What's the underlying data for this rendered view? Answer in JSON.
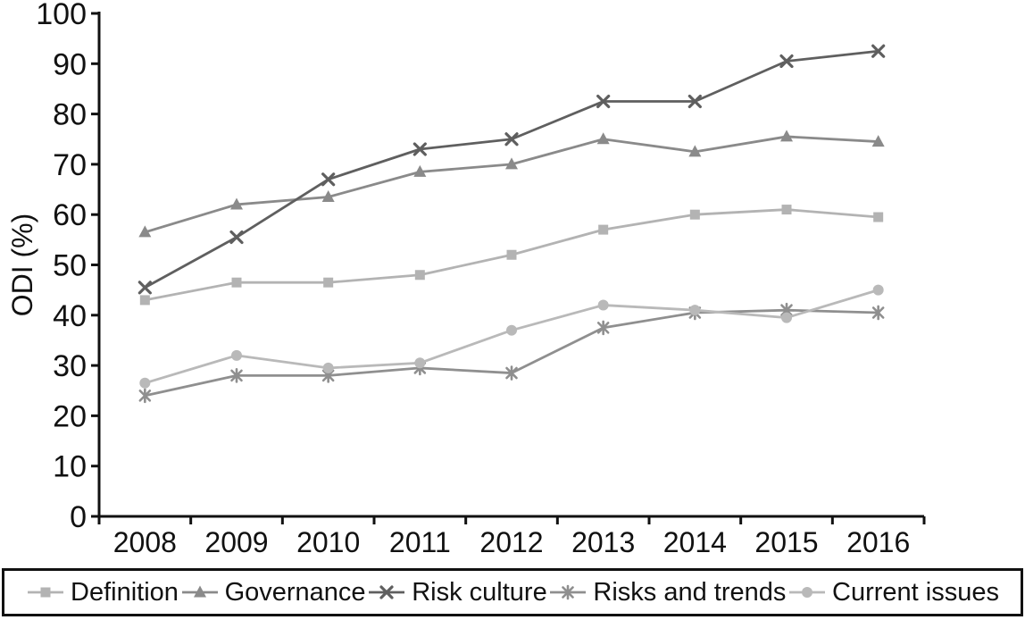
{
  "figure": {
    "background": "#ffffff",
    "axis_color": "#111111",
    "text_color": "#111111"
  },
  "chart_data": {
    "type": "line",
    "title": "",
    "xlabel": "",
    "ylabel": "ODI (%)",
    "ylim": [
      0,
      100
    ],
    "ytick_step": 10,
    "grid": false,
    "legend_position": "bottom",
    "categories": [
      "2008",
      "2009",
      "2010",
      "2011",
      "2012",
      "2013",
      "2014",
      "2015",
      "2016"
    ],
    "series": [
      {
        "name": "Definition",
        "marker": "square",
        "color": "#b3b3b3",
        "values": [
          43,
          46.5,
          46.5,
          48,
          52,
          57,
          60,
          61,
          59.5
        ]
      },
      {
        "name": "Governance",
        "marker": "triangle",
        "color": "#8a8a8a",
        "values": [
          56.5,
          62,
          63.5,
          68.5,
          70,
          75,
          72.5,
          75.5,
          74.5
        ]
      },
      {
        "name": "Risk culture",
        "marker": "x",
        "color": "#5f5f5f",
        "values": [
          45.5,
          55.5,
          67,
          73,
          75,
          82.5,
          82.5,
          90.5,
          92.5
        ]
      },
      {
        "name": "Risks and trends",
        "marker": "asterisk",
        "color": "#8f8f8f",
        "values": [
          24,
          28,
          28,
          29.5,
          28.5,
          37.5,
          40.5,
          41,
          40.5
        ]
      },
      {
        "name": "Current issues",
        "marker": "circle",
        "color": "#b9b9b9",
        "values": [
          26.5,
          32,
          29.5,
          30.5,
          37,
          42,
          41,
          39.5,
          45
        ]
      }
    ]
  }
}
